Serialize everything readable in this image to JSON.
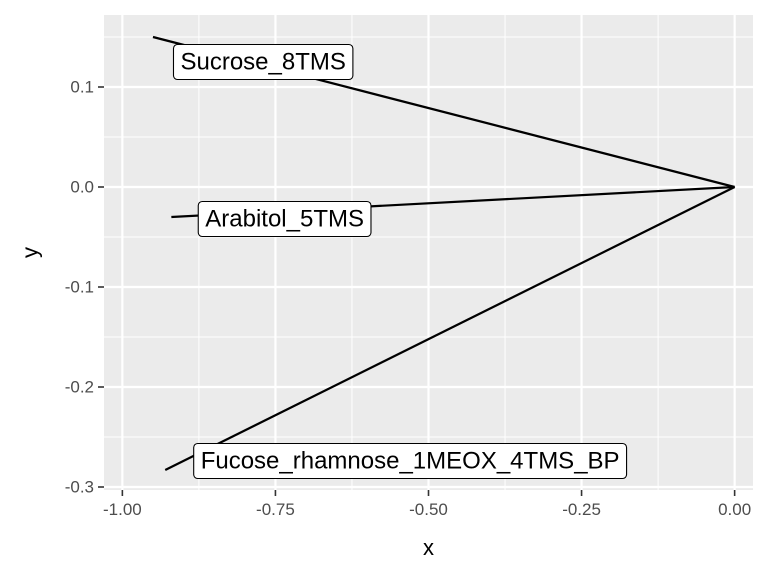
{
  "chart_data": {
    "type": "line",
    "xlabel": "x",
    "ylabel": "y",
    "xlim": [
      -1.0,
      0.0
    ],
    "ylim": [
      -0.3,
      0.15
    ],
    "x_ticks": [
      {
        "value": -1.0,
        "label": "-1.00"
      },
      {
        "value": -0.75,
        "label": "-0.75"
      },
      {
        "value": -0.5,
        "label": "-0.50"
      },
      {
        "value": -0.25,
        "label": "-0.25"
      },
      {
        "value": 0.0,
        "label": "0.00"
      }
    ],
    "y_ticks": [
      {
        "value": 0.1,
        "label": "0.1"
      },
      {
        "value": 0.0,
        "label": "0.0"
      },
      {
        "value": -0.1,
        "label": "-0.1"
      },
      {
        "value": -0.2,
        "label": "-0.2"
      },
      {
        "value": -0.3,
        "label": "-0.3"
      }
    ],
    "series": [
      {
        "name": "Sucrose_8TMS",
        "x": [
          0.0,
          -0.95
        ],
        "y": [
          0.0,
          0.15
        ]
      },
      {
        "name": "Arabitol_5TMS",
        "x": [
          0.0,
          -0.92
        ],
        "y": [
          0.0,
          -0.03
        ]
      },
      {
        "name": "Fucose_rhamnose_1MEOX_4TMS_BP",
        "x": [
          0.0,
          -0.93
        ],
        "y": [
          0.0,
          -0.283
        ]
      }
    ],
    "annotations": [
      {
        "text": "Sucrose_8TMS",
        "x": -0.77,
        "y": 0.125
      },
      {
        "text": "Arabitol_5TMS",
        "x": -0.735,
        "y": -0.032
      },
      {
        "text": "Fucose_rhamnose_1MEOX_4TMS_BP",
        "x": -0.53,
        "y": -0.274
      }
    ],
    "grid": true,
    "background": "#ebebeb",
    "grid_color": "#ffffff",
    "line_color": "#000000"
  }
}
